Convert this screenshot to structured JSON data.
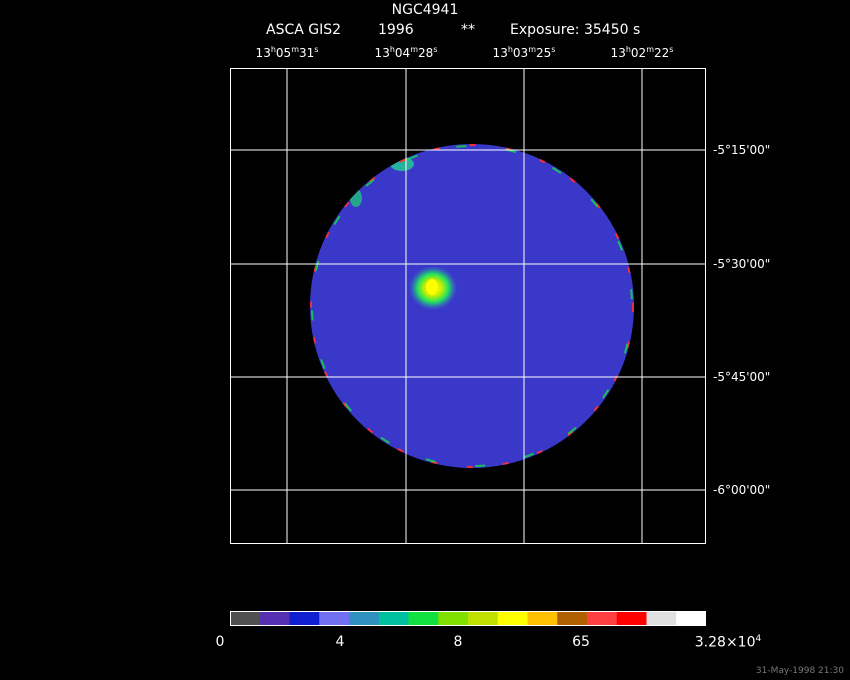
{
  "header": {
    "title": "NGC4941",
    "instrument": "ASCA GIS2",
    "year": "1996",
    "marker": "**",
    "exposure": "Exposure: 35450 s"
  },
  "ra_axis": [
    {
      "h": "13",
      "m": "05",
      "s": "31"
    },
    {
      "h": "13",
      "m": "04",
      "s": "28"
    },
    {
      "h": "13",
      "m": "03",
      "s": "25"
    },
    {
      "h": "13",
      "m": "02",
      "s": "22"
    }
  ],
  "dec_axis": [
    "-5°15'00\"",
    "-5°30'00\"",
    "-5°45'00\"",
    "-6°00'00\""
  ],
  "colorbar": {
    "colors": [
      "#505050",
      "#5530b0",
      "#1020d0",
      "#7070f0",
      "#3090c0",
      "#00c0a0",
      "#10e040",
      "#80e000",
      "#c0e000",
      "#ffff00",
      "#ffc000",
      "#b06000",
      "#ff4040",
      "#ff0000",
      "#e0e0e0",
      "#ffffff"
    ],
    "labels": [
      {
        "text": "0"
      },
      {
        "text": "4"
      },
      {
        "text": "8"
      },
      {
        "text": "65"
      },
      {
        "text": "3.28×10",
        "exp": "4"
      }
    ]
  },
  "image": {
    "background_color": "#000000",
    "low_level_color": "#505050",
    "mid_level_color": "#3a38c8",
    "bright_color": "#7078f0",
    "source_color": "#ffff00",
    "grid_color": "#ffffff"
  },
  "footer": {
    "date_stamp": "31-May-1998 21:30"
  }
}
